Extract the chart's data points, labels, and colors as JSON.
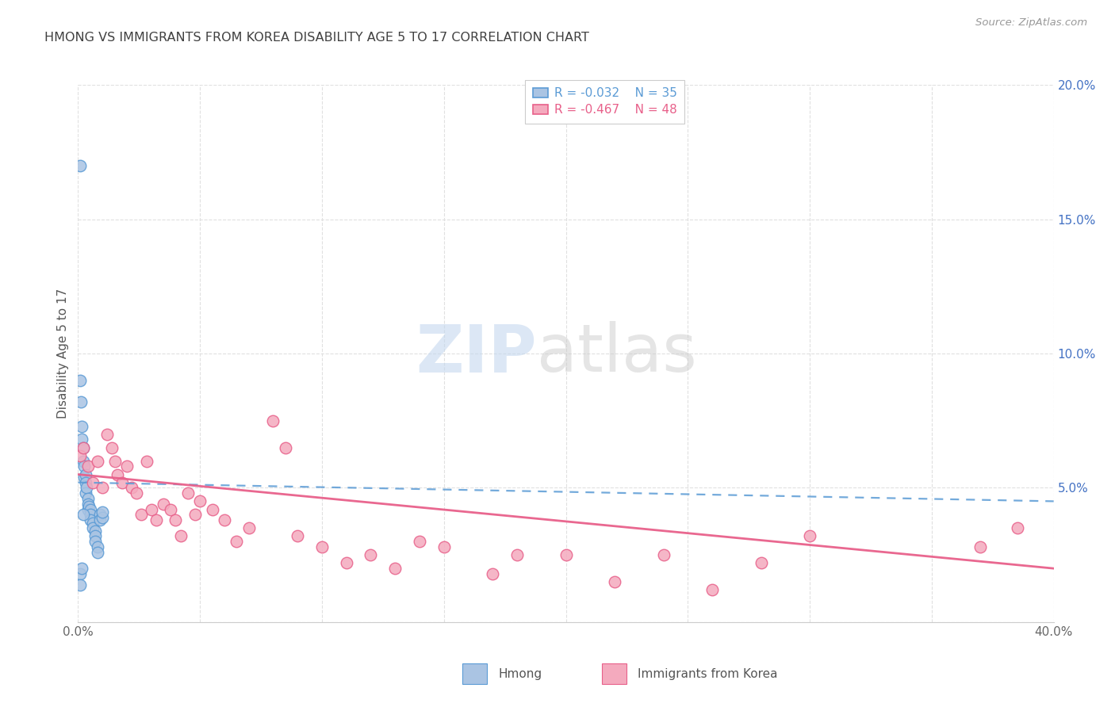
{
  "title": "HMONG VS IMMIGRANTS FROM KOREA DISABILITY AGE 5 TO 17 CORRELATION CHART",
  "source": "Source: ZipAtlas.com",
  "ylabel": "Disability Age 5 to 17",
  "xlim": [
    0.0,
    0.4
  ],
  "ylim": [
    0.0,
    0.2
  ],
  "hmong_color": "#aac4e3",
  "hmong_edge_color": "#5b9bd5",
  "korea_color": "#f4aabe",
  "korea_edge_color": "#e8608a",
  "hmong_R": -0.032,
  "hmong_N": 35,
  "korea_R": -0.467,
  "korea_N": 48,
  "legend_label_1": "Hmong",
  "legend_label_2": "Immigrants from Korea",
  "background_color": "#ffffff",
  "grid_color": "#e0e0e0",
  "title_color": "#404040",
  "right_axis_color": "#4472c4",
  "hmong_scatter_x": [
    0.0008,
    0.001,
    0.0012,
    0.0015,
    0.0015,
    0.002,
    0.002,
    0.0025,
    0.0025,
    0.003,
    0.003,
    0.003,
    0.0035,
    0.004,
    0.004,
    0.004,
    0.0045,
    0.005,
    0.005,
    0.005,
    0.006,
    0.006,
    0.007,
    0.007,
    0.007,
    0.008,
    0.008,
    0.009,
    0.009,
    0.01,
    0.01,
    0.0008,
    0.0008,
    0.0015,
    0.002
  ],
  "hmong_scatter_y": [
    0.17,
    0.09,
    0.082,
    0.073,
    0.068,
    0.065,
    0.06,
    0.058,
    0.054,
    0.055,
    0.052,
    0.048,
    0.05,
    0.046,
    0.044,
    0.042,
    0.043,
    0.042,
    0.04,
    0.038,
    0.037,
    0.035,
    0.034,
    0.032,
    0.03,
    0.028,
    0.026,
    0.04,
    0.038,
    0.039,
    0.041,
    0.018,
    0.014,
    0.02,
    0.04
  ],
  "korea_scatter_x": [
    0.001,
    0.002,
    0.004,
    0.006,
    0.008,
    0.01,
    0.012,
    0.014,
    0.015,
    0.016,
    0.018,
    0.02,
    0.022,
    0.024,
    0.026,
    0.028,
    0.03,
    0.032,
    0.035,
    0.038,
    0.04,
    0.042,
    0.045,
    0.048,
    0.05,
    0.055,
    0.06,
    0.065,
    0.07,
    0.08,
    0.085,
    0.09,
    0.1,
    0.11,
    0.12,
    0.13,
    0.14,
    0.15,
    0.17,
    0.18,
    0.2,
    0.22,
    0.24,
    0.26,
    0.28,
    0.3,
    0.37,
    0.385
  ],
  "korea_scatter_y": [
    0.062,
    0.065,
    0.058,
    0.052,
    0.06,
    0.05,
    0.07,
    0.065,
    0.06,
    0.055,
    0.052,
    0.058,
    0.05,
    0.048,
    0.04,
    0.06,
    0.042,
    0.038,
    0.044,
    0.042,
    0.038,
    0.032,
    0.048,
    0.04,
    0.045,
    0.042,
    0.038,
    0.03,
    0.035,
    0.075,
    0.065,
    0.032,
    0.028,
    0.022,
    0.025,
    0.02,
    0.03,
    0.028,
    0.018,
    0.025,
    0.025,
    0.015,
    0.025,
    0.012,
    0.022,
    0.032,
    0.028,
    0.035
  ]
}
